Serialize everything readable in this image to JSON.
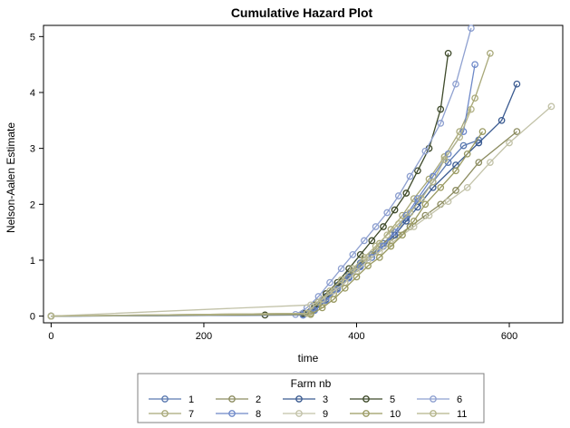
{
  "chart_data": {
    "type": "line",
    "title": "Cumulative Hazard Plot",
    "xlabel": "time",
    "ylabel": "Nelson-Aalen Estimate",
    "xlim": [
      -10,
      670
    ],
    "ylim": [
      -0.12,
      5.2
    ],
    "xticks": [
      0,
      200,
      400,
      600
    ],
    "yticks": [
      0,
      1,
      2,
      3,
      4,
      5
    ],
    "grid": false,
    "legend": {
      "title": "Farm nb",
      "position": "bottom"
    },
    "series": [
      {
        "name": "1",
        "color": "#5a79b0",
        "x": [
          0,
          330,
          345,
          360,
          375,
          390,
          405,
          420,
          435,
          450,
          465,
          480,
          500,
          520,
          540,
          560
        ],
        "y": [
          0,
          0.03,
          0.15,
          0.35,
          0.55,
          0.75,
          0.95,
          1.1,
          1.3,
          1.5,
          1.75,
          2.05,
          2.4,
          2.75,
          3.05,
          3.15
        ]
      },
      {
        "name": "2",
        "color": "#8c8c60",
        "x": [
          0,
          335,
          350,
          365,
          380,
          395,
          410,
          425,
          440,
          455,
          470,
          490,
          510,
          530,
          560,
          610
        ],
        "y": [
          0,
          0.05,
          0.2,
          0.4,
          0.6,
          0.8,
          1.0,
          1.15,
          1.3,
          1.45,
          1.6,
          1.8,
          2.0,
          2.25,
          2.75,
          3.3
        ]
      },
      {
        "name": "3",
        "color": "#3a5a90",
        "x": [
          0,
          330,
          345,
          360,
          375,
          390,
          405,
          420,
          435,
          450,
          465,
          480,
          500,
          530,
          560,
          590,
          610
        ],
        "y": [
          0,
          0.02,
          0.12,
          0.3,
          0.5,
          0.7,
          0.9,
          1.05,
          1.25,
          1.45,
          1.7,
          1.95,
          2.3,
          2.7,
          3.1,
          3.5,
          4.15
        ]
      },
      {
        "name": "5",
        "color": "#3e4a2a",
        "x": [
          0,
          280,
          330,
          345,
          360,
          375,
          390,
          405,
          420,
          435,
          450,
          465,
          480,
          495,
          510,
          520
        ],
        "y": [
          0,
          0.02,
          0.05,
          0.2,
          0.4,
          0.6,
          0.85,
          1.1,
          1.35,
          1.6,
          1.9,
          2.2,
          2.6,
          3.0,
          3.7,
          4.7
        ]
      },
      {
        "name": "6",
        "color": "#8ea0d0",
        "x": [
          0,
          320,
          335,
          350,
          365,
          380,
          395,
          410,
          425,
          440,
          455,
          470,
          490,
          510,
          530,
          550
        ],
        "y": [
          0,
          0.03,
          0.15,
          0.35,
          0.6,
          0.85,
          1.1,
          1.35,
          1.6,
          1.85,
          2.15,
          2.5,
          2.95,
          3.45,
          4.15,
          5.15
        ]
      },
      {
        "name": "7",
        "color": "#a8a878",
        "x": [
          0,
          340,
          355,
          370,
          385,
          400,
          415,
          430,
          445,
          460,
          475,
          495,
          515,
          535,
          555,
          575
        ],
        "y": [
          0,
          0.05,
          0.2,
          0.4,
          0.6,
          0.85,
          1.05,
          1.3,
          1.55,
          1.8,
          2.1,
          2.45,
          2.85,
          3.3,
          3.9,
          4.7
        ]
      },
      {
        "name": "8",
        "color": "#6d88c8",
        "x": [
          0,
          330,
          345,
          360,
          375,
          390,
          405,
          420,
          435,
          450,
          465,
          480,
          500,
          520,
          540,
          555
        ],
        "y": [
          0,
          0.02,
          0.1,
          0.28,
          0.48,
          0.68,
          0.88,
          1.05,
          1.25,
          1.5,
          1.8,
          2.1,
          2.5,
          2.9,
          3.3,
          4.5
        ]
      },
      {
        "name": "9",
        "color": "#c2c2a8",
        "x": [
          0,
          340,
          355,
          370,
          385,
          400,
          415,
          430,
          445,
          460,
          475,
          495,
          520,
          545,
          575,
          600,
          655
        ],
        "y": [
          0,
          0.2,
          0.3,
          0.45,
          0.6,
          0.8,
          1.0,
          1.15,
          1.3,
          1.45,
          1.6,
          1.8,
          2.05,
          2.3,
          2.75,
          3.1,
          3.75
        ]
      },
      {
        "name": "10",
        "color": "#9a9a62",
        "x": [
          0,
          340,
          355,
          370,
          385,
          400,
          415,
          430,
          445,
          460,
          475,
          490,
          510,
          530,
          545,
          565
        ],
        "y": [
          0,
          0.03,
          0.15,
          0.3,
          0.5,
          0.7,
          0.9,
          1.05,
          1.25,
          1.45,
          1.7,
          2.0,
          2.3,
          2.6,
          2.9,
          3.3
        ]
      },
      {
        "name": "11",
        "color": "#b4b48a",
        "x": [
          0,
          335,
          350,
          365,
          380,
          395,
          410,
          425,
          440,
          455,
          470,
          485,
          500,
          515,
          535,
          550
        ],
        "y": [
          0,
          0.05,
          0.25,
          0.45,
          0.65,
          0.85,
          1.05,
          1.25,
          1.45,
          1.65,
          1.85,
          2.1,
          2.4,
          2.8,
          3.2,
          3.7
        ]
      }
    ]
  }
}
